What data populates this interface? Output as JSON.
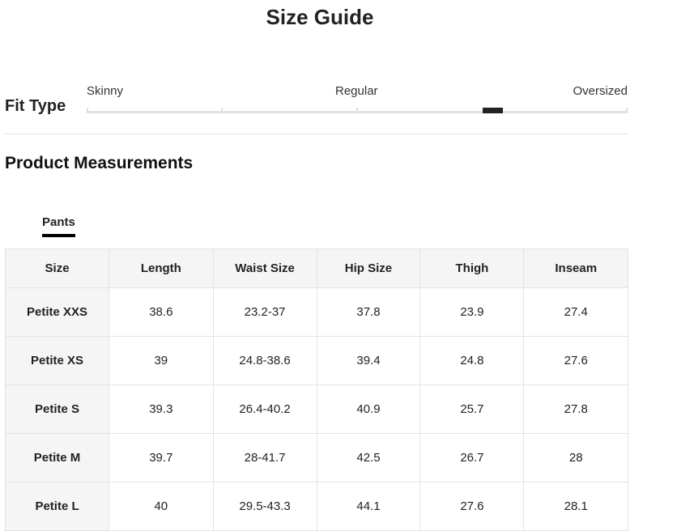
{
  "title": "Size Guide",
  "fit_type": {
    "label": "Fit Type",
    "scale_labels": [
      "Skinny",
      "Regular",
      "Oversized"
    ],
    "value": 0.75,
    "accent": "#222222"
  },
  "section_title": "Product Measurements",
  "tabs": [
    {
      "label": "Pants",
      "active": true
    }
  ],
  "table": {
    "headers": [
      "Size",
      "Length",
      "Waist Size",
      "Hip Size",
      "Thigh",
      "Inseam"
    ],
    "rows": [
      [
        "Petite XXS",
        "38.6",
        "23.2-37",
        "37.8",
        "23.9",
        "27.4"
      ],
      [
        "Petite XS",
        "39",
        "24.8-38.6",
        "39.4",
        "24.8",
        "27.6"
      ],
      [
        "Petite S",
        "39.3",
        "26.4-40.2",
        "40.9",
        "25.7",
        "27.8"
      ],
      [
        "Petite M",
        "39.7",
        "28-41.7",
        "42.5",
        "26.7",
        "28"
      ],
      [
        "Petite L",
        "40",
        "29.5-43.3",
        "44.1",
        "27.6",
        "28.1"
      ]
    ]
  }
}
